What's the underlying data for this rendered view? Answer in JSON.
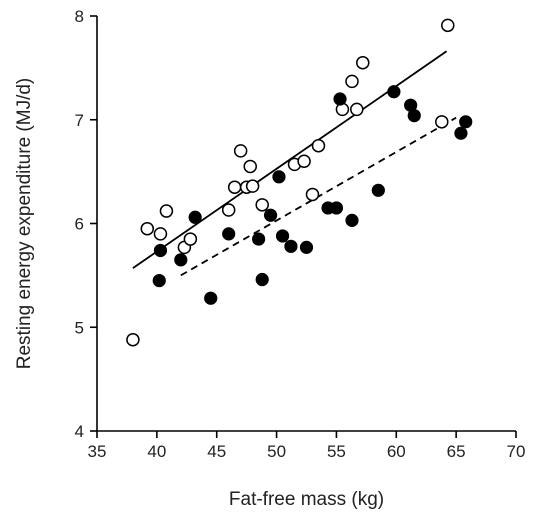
{
  "chart_data": {
    "type": "scatter",
    "title": "",
    "xlabel": "Fat-free mass (kg)",
    "ylabel": "Resting energy expenditure (MJ/d)",
    "xlim": [
      35,
      70
    ],
    "ylim": [
      4,
      8
    ],
    "xticks": [
      35,
      40,
      45,
      50,
      55,
      60,
      65,
      70
    ],
    "yticks": [
      4,
      5,
      6,
      7,
      8
    ],
    "grid": false,
    "legend": "none",
    "series": [
      {
        "marker": "open-circle",
        "color": "#000000",
        "points": [
          [
            38.0,
            4.88
          ],
          [
            39.2,
            5.95
          ],
          [
            40.3,
            5.9
          ],
          [
            40.8,
            6.12
          ],
          [
            42.3,
            5.77
          ],
          [
            42.8,
            5.85
          ],
          [
            46.0,
            6.13
          ],
          [
            46.5,
            6.35
          ],
          [
            47.0,
            6.7
          ],
          [
            47.5,
            6.35
          ],
          [
            47.8,
            6.55
          ],
          [
            48.0,
            6.36
          ],
          [
            48.8,
            6.18
          ],
          [
            51.5,
            6.57
          ],
          [
            52.3,
            6.6
          ],
          [
            53.0,
            6.28
          ],
          [
            53.5,
            6.75
          ],
          [
            55.5,
            7.1
          ],
          [
            56.3,
            7.37
          ],
          [
            56.7,
            7.1
          ],
          [
            57.2,
            7.55
          ],
          [
            63.8,
            6.98
          ],
          [
            64.3,
            7.91
          ]
        ],
        "fit": {
          "style": "solid",
          "x": [
            38.0,
            64.2
          ],
          "y": [
            5.57,
            7.66
          ]
        }
      },
      {
        "marker": "filled-circle",
        "color": "#000000",
        "points": [
          [
            40.2,
            5.45
          ],
          [
            40.3,
            5.74
          ],
          [
            42.0,
            5.65
          ],
          [
            43.2,
            6.06
          ],
          [
            44.5,
            5.28
          ],
          [
            46.0,
            5.9
          ],
          [
            48.5,
            5.85
          ],
          [
            48.8,
            5.46
          ],
          [
            49.5,
            6.08
          ],
          [
            50.2,
            6.45
          ],
          [
            50.5,
            5.88
          ],
          [
            51.2,
            5.78
          ],
          [
            52.5,
            5.77
          ],
          [
            54.3,
            6.15
          ],
          [
            55.0,
            6.15
          ],
          [
            55.3,
            7.2
          ],
          [
            56.3,
            6.03
          ],
          [
            58.5,
            6.32
          ],
          [
            59.8,
            7.27
          ],
          [
            61.2,
            7.14
          ],
          [
            61.5,
            7.04
          ],
          [
            65.4,
            6.87
          ],
          [
            65.8,
            6.98
          ]
        ],
        "fit": {
          "style": "dashed",
          "x": [
            42.0,
            65.0
          ],
          "y": [
            5.5,
            7.02
          ]
        }
      }
    ]
  }
}
